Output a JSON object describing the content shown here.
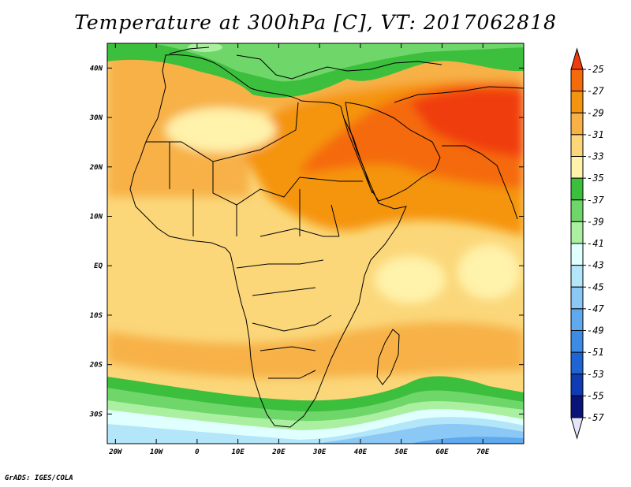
{
  "title": "Temperature at 300hPa [C], VT: 2017062818",
  "credit": "GrADS: IGES/COLA",
  "map": {
    "projection": "lat-lon",
    "lon_range": [
      -22,
      80
    ],
    "lat_range": [
      -36,
      45
    ],
    "lon_ticks": [
      {
        "value": -20,
        "label": "20W"
      },
      {
        "value": -10,
        "label": "10W"
      },
      {
        "value": 0,
        "label": "0"
      },
      {
        "value": 10,
        "label": "10E"
      },
      {
        "value": 20,
        "label": "20E"
      },
      {
        "value": 30,
        "label": "30E"
      },
      {
        "value": 40,
        "label": "40E"
      },
      {
        "value": 50,
        "label": "50E"
      },
      {
        "value": 60,
        "label": "60E"
      },
      {
        "value": 70,
        "label": "70E"
      }
    ],
    "lat_ticks": [
      {
        "value": 40,
        "label": "40N"
      },
      {
        "value": 30,
        "label": "30N"
      },
      {
        "value": 20,
        "label": "20N"
      },
      {
        "value": 10,
        "label": "10N"
      },
      {
        "value": 0,
        "label": "EQ"
      },
      {
        "value": -10,
        "label": "10S"
      },
      {
        "value": -20,
        "label": "20S"
      },
      {
        "value": -30,
        "label": "30S"
      }
    ]
  },
  "colorbar": {
    "levels": [
      "-25",
      "-27",
      "-29",
      "-31",
      "-33",
      "-35",
      "-37",
      "-39",
      "-41",
      "-43",
      "-45",
      "-47",
      "-49",
      "-51",
      "-53",
      "-55",
      "-57"
    ],
    "colors": [
      "#f03c0a",
      "#f56a0a",
      "#f5940f",
      "#f7b146",
      "#fbd77a",
      "#fff2aa",
      "#3cbf3c",
      "#6fd66a",
      "#aaf0a0",
      "#e0ffff",
      "#b4e6fa",
      "#8cc8f5",
      "#5fa9ee",
      "#3c8ce6",
      "#1e64d2",
      "#0f3cb4",
      "#0a1478"
    ],
    "top_arrow_color": "#f03c0a",
    "bottom_arrow_color": "#e6e6fa"
  }
}
